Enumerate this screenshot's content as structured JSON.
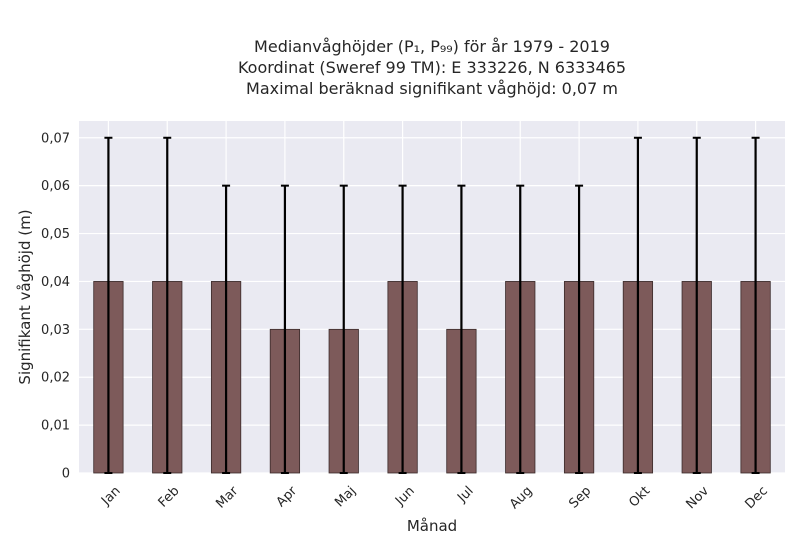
{
  "chart_data": {
    "type": "bar",
    "title_lines": [
      "Medianvåghöjder (P₁, P₉₉) för år 1979 - 2019",
      "Koordinat (Sweref 99 TM): E 333226, N 6333465",
      "Maximal beräknad signifikant våghöjd: 0,07 m"
    ],
    "xlabel": "Månad",
    "ylabel": "Signifikant våghöjd (m)",
    "categories": [
      "Jan",
      "Feb",
      "Mar",
      "Apr",
      "Maj",
      "Jun",
      "Jul",
      "Aug",
      "Sep",
      "Okt",
      "Nov",
      "Dec"
    ],
    "values": [
      0.04,
      0.04,
      0.04,
      0.03,
      0.03,
      0.04,
      0.03,
      0.04,
      0.04,
      0.04,
      0.04,
      0.04
    ],
    "error_low": [
      0,
      0,
      0,
      0,
      0,
      0,
      0,
      0,
      0,
      0,
      0,
      0
    ],
    "error_high": [
      0.07,
      0.07,
      0.06,
      0.06,
      0.06,
      0.06,
      0.06,
      0.06,
      0.06,
      0.07,
      0.07,
      0.07
    ],
    "ylim": [
      0,
      0.0735
    ],
    "yticks": [
      0,
      0.01,
      0.02,
      0.03,
      0.04,
      0.05,
      0.06,
      0.07
    ],
    "ytick_labels": [
      "0",
      "0,01",
      "0,02",
      "0,03",
      "0,04",
      "0,05",
      "0,06",
      "0,07"
    ],
    "grid": true,
    "colors": {
      "bar_fill": "#7d5a5a",
      "bar_edge": "#3a2a2a",
      "error_bar": "#000000",
      "plot_bg": "#eaeaf2",
      "grid": "#ffffff"
    }
  }
}
